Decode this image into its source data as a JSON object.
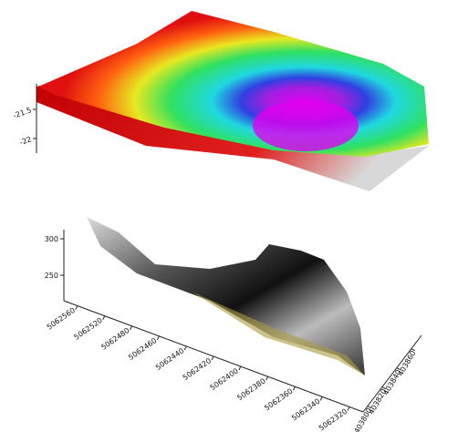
{
  "plots": [
    {
      "zticks": [
        "-21.5",
        "-22"
      ]
    },
    {
      "zticks": [
        "300",
        "250"
      ],
      "yticks": [
        "5062560",
        "5062520",
        "5062480",
        "5062460",
        "5062440",
        "5062420",
        "5062400",
        "5062380",
        "5062360",
        "5062340",
        "5062320"
      ],
      "xticks": [
        "403800",
        "403820",
        "403840",
        "403860"
      ]
    }
  ]
}
